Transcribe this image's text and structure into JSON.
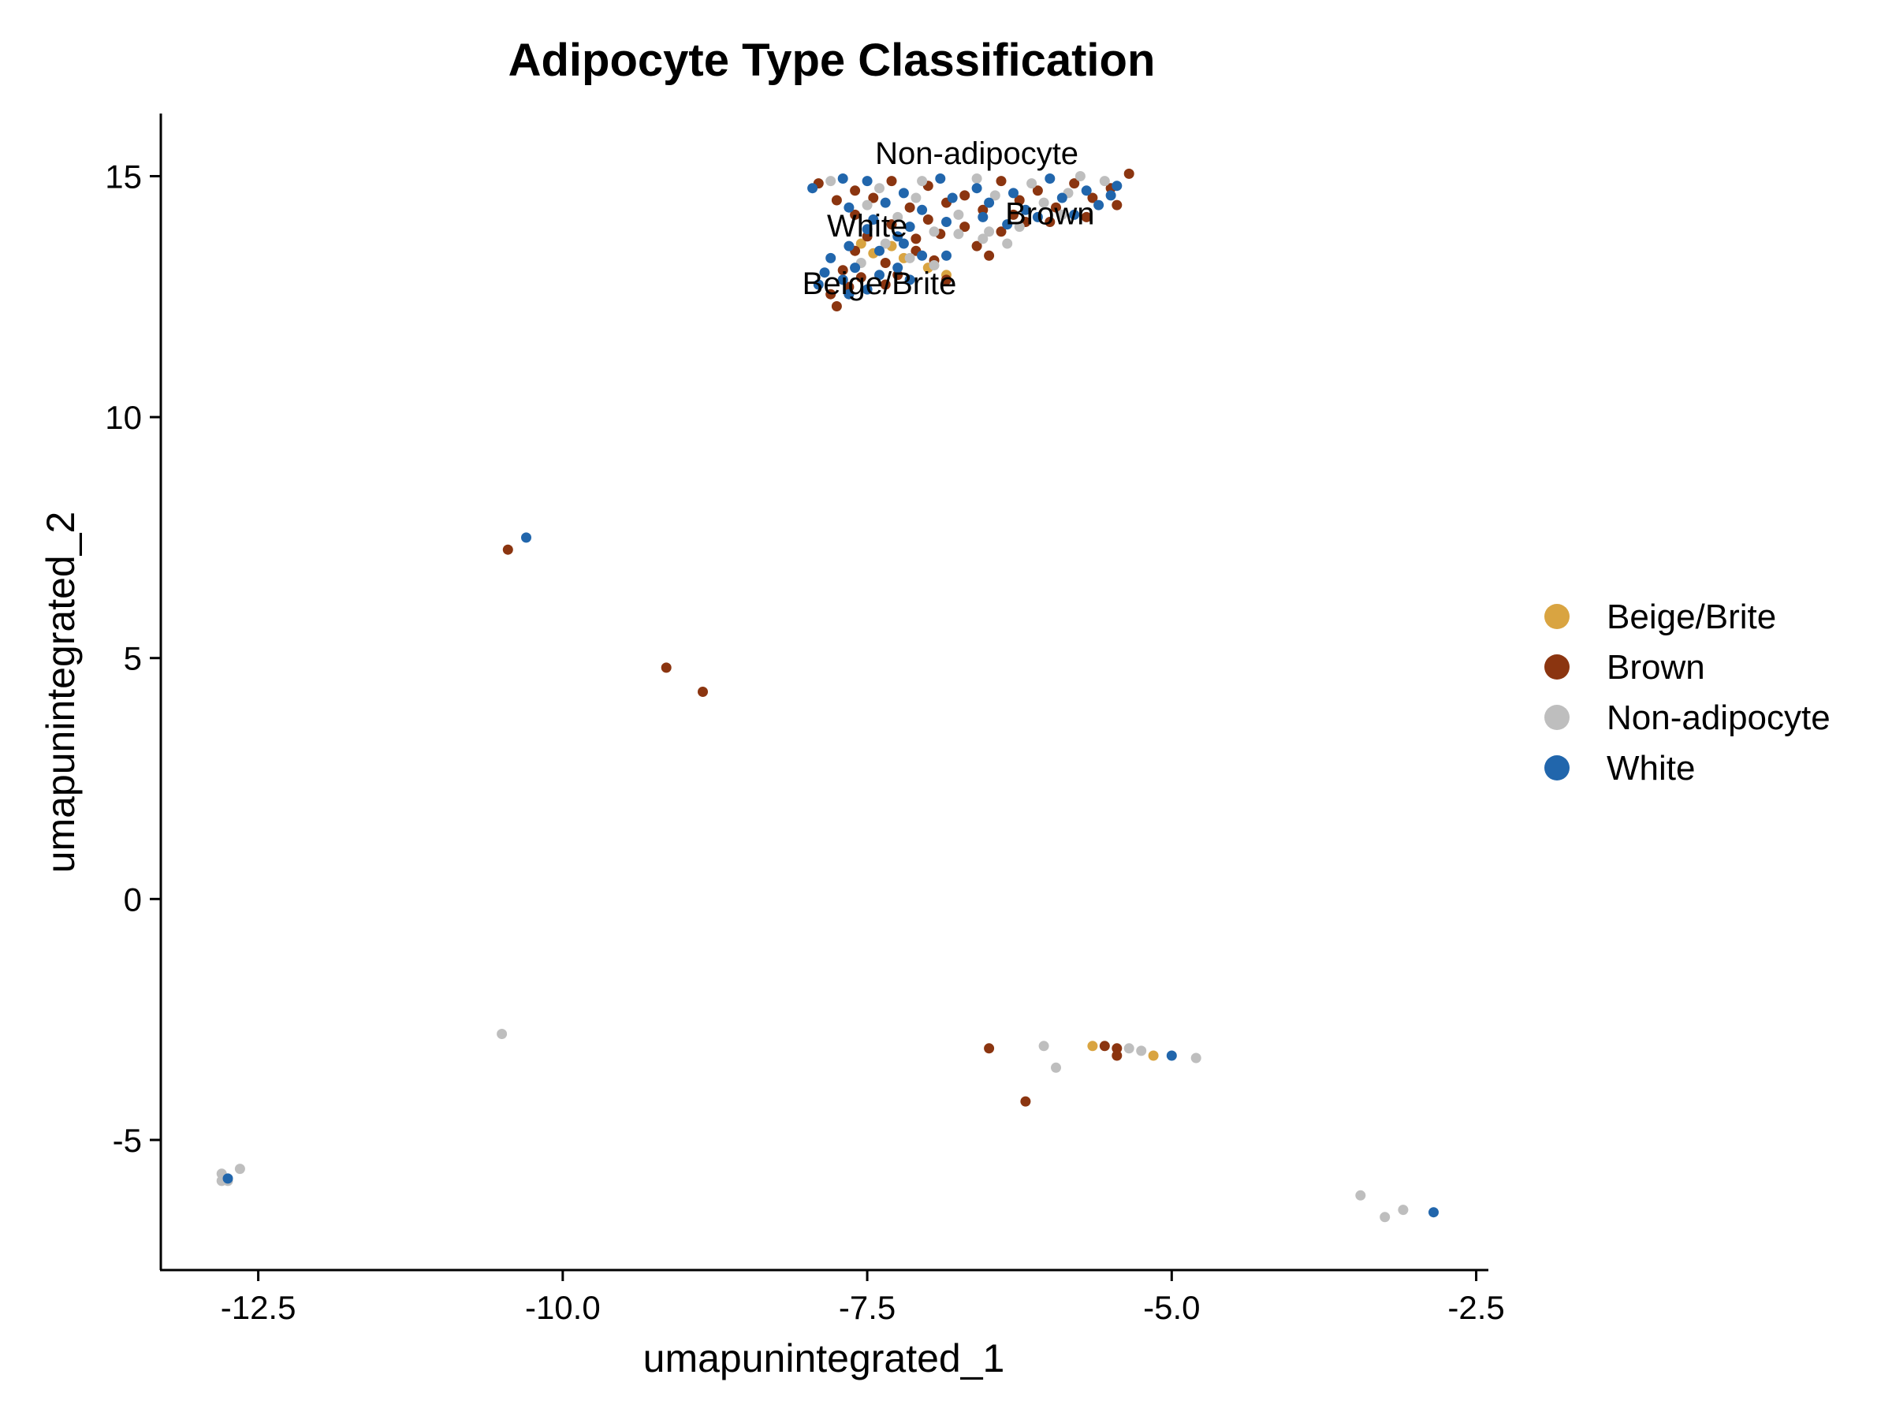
{
  "chart_data": {
    "type": "scatter",
    "title": "Adipocyte Type Classification",
    "xlabel": "umapunintegrated_1",
    "ylabel": "umapunintegrated_2",
    "xlim": [
      -13.3,
      -2.4
    ],
    "ylim": [
      -7.7,
      16.3
    ],
    "xticks": [
      -12.5,
      -10.0,
      -7.5,
      -5.0,
      -2.5
    ],
    "xtick_labels": [
      "-12.5",
      "-10.0",
      "-7.5",
      "-5.0",
      "-2.5"
    ],
    "yticks": [
      -5,
      0,
      5,
      10,
      15
    ],
    "ytick_labels": [
      "-5",
      "0",
      "5",
      "10",
      "15"
    ],
    "grid": false,
    "legend_position": "right",
    "series": [
      {
        "name": "Beige/Brite",
        "color": "#D9A441",
        "points": [
          [
            -7.45,
            13.4
          ],
          [
            -7.2,
            13.3
          ],
          [
            -7.0,
            13.1
          ],
          [
            -6.85,
            12.95
          ],
          [
            -7.55,
            13.6
          ],
          [
            -7.3,
            13.55
          ],
          [
            -5.65,
            -3.05
          ],
          [
            -5.15,
            -3.25
          ]
        ]
      },
      {
        "name": "Brown",
        "color": "#8B3510",
        "points": [
          [
            -7.9,
            14.85
          ],
          [
            -7.6,
            14.7
          ],
          [
            -7.3,
            14.9
          ],
          [
            -7.0,
            14.8
          ],
          [
            -6.7,
            14.6
          ],
          [
            -6.4,
            14.9
          ],
          [
            -6.1,
            14.7
          ],
          [
            -5.8,
            14.85
          ],
          [
            -5.5,
            14.75
          ],
          [
            -5.35,
            15.05
          ],
          [
            -7.75,
            14.5
          ],
          [
            -7.45,
            14.55
          ],
          [
            -7.15,
            14.35
          ],
          [
            -6.85,
            14.45
          ],
          [
            -6.55,
            14.3
          ],
          [
            -6.25,
            14.5
          ],
          [
            -5.95,
            14.35
          ],
          [
            -5.65,
            14.55
          ],
          [
            -5.45,
            14.4
          ],
          [
            -7.6,
            14.2
          ],
          [
            -7.3,
            14.0
          ],
          [
            -7.0,
            14.1
          ],
          [
            -6.7,
            13.95
          ],
          [
            -6.4,
            13.85
          ],
          [
            -6.2,
            14.05
          ],
          [
            -6.6,
            13.55
          ],
          [
            -6.5,
            13.35
          ],
          [
            -6.9,
            13.8
          ],
          [
            -7.1,
            13.7
          ],
          [
            -7.5,
            13.75
          ],
          [
            -7.6,
            13.45
          ],
          [
            -7.35,
            13.2
          ],
          [
            -7.1,
            13.45
          ],
          [
            -6.95,
            13.25
          ],
          [
            -6.85,
            12.85
          ],
          [
            -7.7,
            13.05
          ],
          [
            -7.55,
            12.9
          ],
          [
            -7.35,
            12.75
          ],
          [
            -7.8,
            12.55
          ],
          [
            -7.75,
            12.3
          ],
          [
            -7.25,
            12.95
          ],
          [
            -7.65,
            12.7
          ],
          [
            -5.7,
            14.15
          ],
          [
            -6.0,
            14.05
          ],
          [
            -6.3,
            14.2
          ],
          [
            -10.45,
            7.25
          ],
          [
            -9.15,
            4.8
          ],
          [
            -8.85,
            4.3
          ],
          [
            -6.5,
            -3.1
          ],
          [
            -5.55,
            -3.05
          ],
          [
            -5.45,
            -3.1
          ],
          [
            -5.45,
            -3.25
          ],
          [
            -6.2,
            -4.2
          ]
        ]
      },
      {
        "name": "Non-adipocyte",
        "color": "#BEBEBE",
        "points": [
          [
            -7.8,
            14.9
          ],
          [
            -7.4,
            14.75
          ],
          [
            -7.05,
            14.9
          ],
          [
            -6.6,
            14.95
          ],
          [
            -6.15,
            14.85
          ],
          [
            -5.75,
            15.0
          ],
          [
            -5.55,
            14.9
          ],
          [
            -7.5,
            14.4
          ],
          [
            -7.1,
            14.55
          ],
          [
            -6.75,
            14.2
          ],
          [
            -6.45,
            14.6
          ],
          [
            -6.05,
            14.45
          ],
          [
            -5.85,
            14.65
          ],
          [
            -7.25,
            14.15
          ],
          [
            -6.95,
            13.85
          ],
          [
            -6.75,
            13.8
          ],
          [
            -6.55,
            13.7
          ],
          [
            -6.35,
            13.6
          ],
          [
            -7.35,
            13.6
          ],
          [
            -7.15,
            13.3
          ],
          [
            -6.95,
            13.15
          ],
          [
            -7.55,
            13.2
          ],
          [
            -6.5,
            13.85
          ],
          [
            -6.25,
            13.95
          ],
          [
            -5.9,
            14.2
          ],
          [
            -10.5,
            -2.8
          ],
          [
            -6.05,
            -3.05
          ],
          [
            -5.35,
            -3.1
          ],
          [
            -5.25,
            -3.15
          ],
          [
            -5.95,
            -3.5
          ],
          [
            -4.8,
            -3.3
          ],
          [
            -12.8,
            -5.7
          ],
          [
            -12.75,
            -5.85
          ],
          [
            -12.65,
            -5.6
          ],
          [
            -12.8,
            -5.85
          ],
          [
            -3.45,
            -6.15
          ],
          [
            -3.25,
            -6.6
          ],
          [
            -3.1,
            -6.45
          ]
        ]
      },
      {
        "name": "White",
        "color": "#2166AC",
        "points": [
          [
            -7.95,
            14.75
          ],
          [
            -7.7,
            14.95
          ],
          [
            -7.5,
            14.9
          ],
          [
            -7.2,
            14.65
          ],
          [
            -6.9,
            14.95
          ],
          [
            -6.6,
            14.75
          ],
          [
            -6.3,
            14.65
          ],
          [
            -6.0,
            14.95
          ],
          [
            -5.7,
            14.7
          ],
          [
            -5.45,
            14.8
          ],
          [
            -7.65,
            14.35
          ],
          [
            -7.35,
            14.45
          ],
          [
            -7.05,
            14.3
          ],
          [
            -6.8,
            14.55
          ],
          [
            -6.5,
            14.45
          ],
          [
            -6.2,
            14.3
          ],
          [
            -5.9,
            14.55
          ],
          [
            -5.6,
            14.4
          ],
          [
            -7.45,
            14.1
          ],
          [
            -7.15,
            13.95
          ],
          [
            -6.85,
            14.05
          ],
          [
            -6.55,
            14.15
          ],
          [
            -6.35,
            14.0
          ],
          [
            -7.5,
            13.9
          ],
          [
            -7.25,
            13.75
          ],
          [
            -7.65,
            13.55
          ],
          [
            -7.4,
            13.45
          ],
          [
            -7.2,
            13.6
          ],
          [
            -7.05,
            13.35
          ],
          [
            -7.8,
            13.3
          ],
          [
            -7.6,
            13.1
          ],
          [
            -7.4,
            12.95
          ],
          [
            -7.25,
            13.1
          ],
          [
            -7.85,
            13.0
          ],
          [
            -7.7,
            12.85
          ],
          [
            -7.5,
            12.65
          ],
          [
            -7.9,
            12.75
          ],
          [
            -7.65,
            12.55
          ],
          [
            -7.15,
            12.85
          ],
          [
            -6.85,
            13.35
          ],
          [
            -5.8,
            14.2
          ],
          [
            -6.1,
            14.15
          ],
          [
            -5.5,
            14.6
          ],
          [
            -10.3,
            7.5
          ],
          [
            -5.0,
            -3.25
          ],
          [
            -12.75,
            -5.8
          ],
          [
            -2.85,
            -6.5
          ]
        ]
      }
    ],
    "annotations": [
      {
        "text": "Non-adipocyte",
        "x": -6.6,
        "y": 15.25
      },
      {
        "text": "White",
        "x": -7.5,
        "y": 13.75
      },
      {
        "text": "Brown",
        "x": -6.0,
        "y": 14.0
      },
      {
        "text": "Beige/Brite",
        "x": -7.4,
        "y": 12.55
      }
    ],
    "legend": [
      "Beige/Brite",
      "Brown",
      "Non-adipocyte",
      "White"
    ]
  }
}
